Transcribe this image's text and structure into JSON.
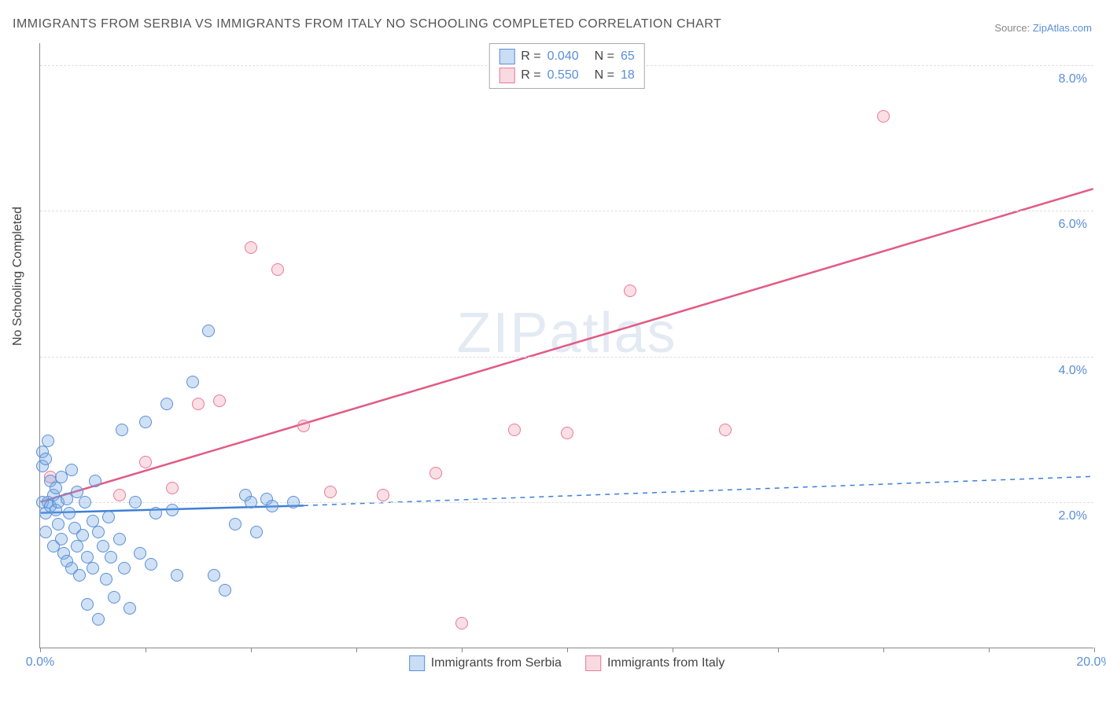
{
  "title": "IMMIGRANTS FROM SERBIA VS IMMIGRANTS FROM ITALY NO SCHOOLING COMPLETED CORRELATION CHART",
  "source_label": "Source:",
  "source_name": "ZipAtlas.com",
  "y_axis_label": "No Schooling Completed",
  "watermark": {
    "zip": "ZIP",
    "atlas": "atlas"
  },
  "chart": {
    "type": "scatter",
    "background_color": "#ffffff",
    "grid_color": "#dddddd",
    "axis_color": "#888888",
    "x_range": [
      0,
      20
    ],
    "y_range": [
      0,
      8.3
    ],
    "x_ticks": [
      0,
      2,
      4,
      6,
      8,
      10,
      12,
      14,
      16,
      18,
      20
    ],
    "x_tick_labels": {
      "0": "0.0%",
      "20": "20.0%"
    },
    "y_grid": [
      2,
      4,
      6,
      8
    ],
    "y_tick_labels": {
      "2": "2.0%",
      "4": "4.0%",
      "6": "6.0%",
      "8": "8.0%"
    },
    "marker_size": 16
  },
  "series": {
    "serbia": {
      "label": "Immigrants from Serbia",
      "color_fill": "rgba(120,170,230,0.35)",
      "color_stroke": "#5a8fd6",
      "R": "0.040",
      "N": "65",
      "trend": {
        "x1": 0,
        "y1": 1.85,
        "x2": 5.0,
        "y2": 1.95,
        "dash_x2": 20,
        "dash_y2": 2.35,
        "color": "#3d7fd6",
        "width": 2.5
      },
      "points": [
        [
          0.05,
          2.7
        ],
        [
          0.05,
          2.5
        ],
        [
          0.05,
          2.0
        ],
        [
          0.1,
          2.6
        ],
        [
          0.1,
          1.85
        ],
        [
          0.1,
          1.6
        ],
        [
          0.15,
          2.85
        ],
        [
          0.15,
          2.0
        ],
        [
          0.2,
          2.3
        ],
        [
          0.2,
          1.95
        ],
        [
          0.25,
          1.4
        ],
        [
          0.25,
          2.1
        ],
        [
          0.3,
          2.2
        ],
        [
          0.3,
          1.9
        ],
        [
          0.35,
          1.7
        ],
        [
          0.35,
          2.0
        ],
        [
          0.4,
          1.5
        ],
        [
          0.4,
          2.35
        ],
        [
          0.45,
          1.3
        ],
        [
          0.5,
          2.05
        ],
        [
          0.5,
          1.2
        ],
        [
          0.55,
          1.85
        ],
        [
          0.6,
          1.1
        ],
        [
          0.6,
          2.45
        ],
        [
          0.65,
          1.65
        ],
        [
          0.7,
          1.4
        ],
        [
          0.7,
          2.15
        ],
        [
          0.75,
          1.0
        ],
        [
          0.8,
          1.55
        ],
        [
          0.85,
          2.0
        ],
        [
          0.9,
          1.25
        ],
        [
          0.9,
          0.6
        ],
        [
          1.0,
          1.75
        ],
        [
          1.0,
          1.1
        ],
        [
          1.05,
          2.3
        ],
        [
          1.1,
          0.4
        ],
        [
          1.1,
          1.6
        ],
        [
          1.2,
          1.4
        ],
        [
          1.25,
          0.95
        ],
        [
          1.3,
          1.8
        ],
        [
          1.35,
          1.25
        ],
        [
          1.4,
          0.7
        ],
        [
          1.5,
          1.5
        ],
        [
          1.55,
          3.0
        ],
        [
          1.6,
          1.1
        ],
        [
          1.7,
          0.55
        ],
        [
          1.8,
          2.0
        ],
        [
          1.9,
          1.3
        ],
        [
          2.0,
          3.1
        ],
        [
          2.1,
          1.15
        ],
        [
          2.2,
          1.85
        ],
        [
          2.4,
          3.35
        ],
        [
          2.5,
          1.9
        ],
        [
          2.6,
          1.0
        ],
        [
          2.9,
          3.65
        ],
        [
          3.2,
          4.35
        ],
        [
          3.3,
          1.0
        ],
        [
          3.5,
          0.8
        ],
        [
          3.7,
          1.7
        ],
        [
          3.9,
          2.1
        ],
        [
          4.0,
          2.0
        ],
        [
          4.1,
          1.6
        ],
        [
          4.3,
          2.05
        ],
        [
          4.4,
          1.95
        ],
        [
          4.8,
          2.0
        ]
      ]
    },
    "italy": {
      "label": "Immigrants from Italy",
      "color_fill": "rgba(240,150,170,0.30)",
      "color_stroke": "#e87a9a",
      "R": "0.550",
      "N": "18",
      "trend": {
        "x1": 0,
        "y1": 2.0,
        "x2": 20,
        "y2": 6.3,
        "color": "#e25a85",
        "width": 2.5
      },
      "points": [
        [
          0.2,
          2.35
        ],
        [
          1.5,
          2.1
        ],
        [
          2.0,
          2.55
        ],
        [
          2.5,
          2.2
        ],
        [
          3.0,
          3.35
        ],
        [
          3.4,
          3.4
        ],
        [
          4.0,
          5.5
        ],
        [
          4.5,
          5.2
        ],
        [
          5.0,
          3.05
        ],
        [
          5.5,
          2.15
        ],
        [
          6.5,
          2.1
        ],
        [
          7.5,
          2.4
        ],
        [
          8.0,
          0.35
        ],
        [
          9.0,
          3.0
        ],
        [
          10.0,
          2.95
        ],
        [
          11.2,
          4.9
        ],
        [
          13.0,
          3.0
        ],
        [
          16.0,
          7.3
        ]
      ]
    }
  },
  "legend_top": {
    "r_label": "R =",
    "n_label": "N ="
  }
}
